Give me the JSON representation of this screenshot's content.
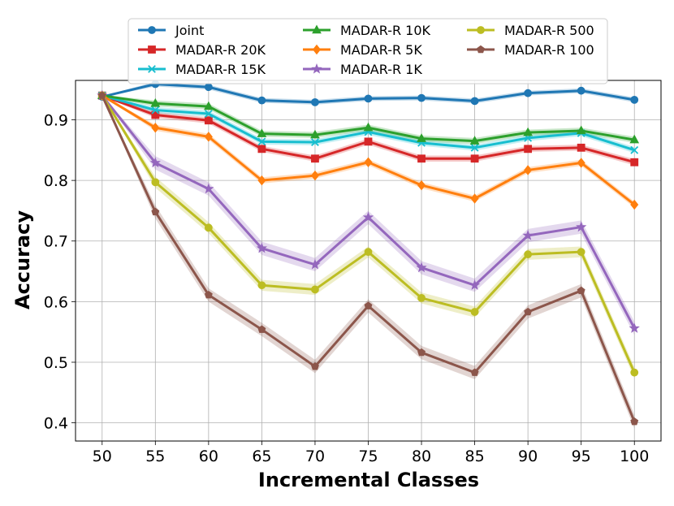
{
  "chart_data": {
    "type": "line",
    "title": "",
    "xlabel": "Incremental Classes",
    "ylabel": "Accuracy",
    "x": [
      50,
      55,
      60,
      65,
      70,
      75,
      80,
      85,
      90,
      95,
      100
    ],
    "xlim": [
      47.5,
      102.5
    ],
    "ylim": [
      0.37,
      0.965
    ],
    "yticks": [
      0.4,
      0.5,
      0.6,
      0.7,
      0.8,
      0.9
    ],
    "grid": true,
    "legend_position": "top-center",
    "legend_columns": 3,
    "series": [
      {
        "name": "Joint",
        "color": "#1f77b4",
        "marker": "circle",
        "values": [
          0.938,
          0.959,
          0.954,
          0.932,
          0.929,
          0.935,
          0.936,
          0.931,
          0.944,
          0.948,
          0.933
        ]
      },
      {
        "name": "MADAR-R 20K",
        "color": "#d62728",
        "marker": "square",
        "values": [
          0.94,
          0.908,
          0.899,
          0.852,
          0.836,
          0.864,
          0.836,
          0.836,
          0.852,
          0.854,
          0.83
        ]
      },
      {
        "name": "MADAR-R 15K",
        "color": "#17becf",
        "marker": "x",
        "values": [
          0.94,
          0.916,
          0.91,
          0.864,
          0.863,
          0.88,
          0.862,
          0.854,
          0.87,
          0.878,
          0.85
        ]
      },
      {
        "name": "MADAR-R 10K",
        "color": "#2ca02c",
        "marker": "triangle",
        "values": [
          0.94,
          0.927,
          0.922,
          0.877,
          0.875,
          0.887,
          0.869,
          0.865,
          0.879,
          0.882,
          0.867
        ]
      },
      {
        "name": "MADAR-R 5K",
        "color": "#ff7f0e",
        "marker": "diamond",
        "values": [
          0.94,
          0.887,
          0.872,
          0.8,
          0.808,
          0.83,
          0.792,
          0.77,
          0.817,
          0.829,
          0.76
        ]
      },
      {
        "name": "MADAR-R 1K",
        "color": "#9467bd",
        "marker": "star",
        "values": [
          0.94,
          0.829,
          0.786,
          0.688,
          0.661,
          0.739,
          0.656,
          0.627,
          0.709,
          0.723,
          0.556
        ]
      },
      {
        "name": "MADAR-R 500",
        "color": "#bcbd22",
        "marker": "circle",
        "values": [
          0.94,
          0.797,
          0.722,
          0.627,
          0.62,
          0.682,
          0.606,
          0.583,
          0.678,
          0.682,
          0.483
        ]
      },
      {
        "name": "MADAR-R 100",
        "color": "#8c564b",
        "marker": "pentagon",
        "values": [
          0.94,
          0.748,
          0.611,
          0.554,
          0.493,
          0.593,
          0.516,
          0.483,
          0.583,
          0.618,
          0.402
        ]
      }
    ]
  }
}
